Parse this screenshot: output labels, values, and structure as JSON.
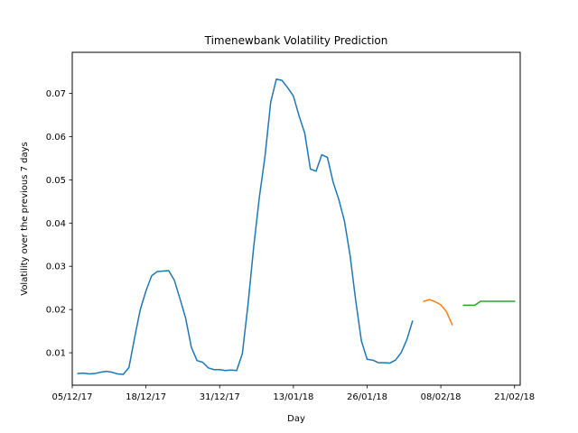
{
  "chart_data": {
    "type": "line",
    "title": "Timenewbank Volatility Prediction",
    "xlabel": "Day",
    "ylabel": "Volatility over the previous 7 days",
    "x_range": [
      "2017-12-05",
      "2018-02-22"
    ],
    "ylim": [
      0.0025,
      0.0795
    ],
    "x_ticks": [
      {
        "date": "2017-12-05",
        "label": "05/12/17"
      },
      {
        "date": "2017-12-18",
        "label": "18/12/17"
      },
      {
        "date": "2017-12-31",
        "label": "31/12/17"
      },
      {
        "date": "2018-01-13",
        "label": "13/01/18"
      },
      {
        "date": "2018-01-26",
        "label": "26/01/18"
      },
      {
        "date": "2018-02-08",
        "label": "08/02/18"
      },
      {
        "date": "2018-02-21",
        "label": "21/02/18"
      }
    ],
    "y_ticks": [
      {
        "value": 0.01,
        "label": "0.01"
      },
      {
        "value": 0.02,
        "label": "0.02"
      },
      {
        "value": 0.03,
        "label": "0.03"
      },
      {
        "value": 0.04,
        "label": "0.04"
      },
      {
        "value": 0.05,
        "label": "0.05"
      },
      {
        "value": 0.06,
        "label": "0.06"
      },
      {
        "value": 0.07,
        "label": "0.07"
      }
    ],
    "grid": false,
    "legend": "none",
    "series": [
      {
        "color": "#1f77b4",
        "points": [
          [
            "2017-12-06",
            0.0052
          ],
          [
            "2017-12-07",
            0.0053
          ],
          [
            "2017-12-08",
            0.0051
          ],
          [
            "2017-12-09",
            0.0052
          ],
          [
            "2017-12-10",
            0.0055
          ],
          [
            "2017-12-11",
            0.0057
          ],
          [
            "2017-12-12",
            0.0055
          ],
          [
            "2017-12-13",
            0.0051
          ],
          [
            "2017-12-14",
            0.005
          ],
          [
            "2017-12-15",
            0.0066
          ],
          [
            "2017-12-16",
            0.0135
          ],
          [
            "2017-12-17",
            0.02
          ],
          [
            "2017-12-18",
            0.0243
          ],
          [
            "2017-12-19",
            0.0278
          ],
          [
            "2017-12-20",
            0.0288
          ],
          [
            "2017-12-21",
            0.0289
          ],
          [
            "2017-12-22",
            0.029
          ],
          [
            "2017-12-23",
            0.0268
          ],
          [
            "2017-12-24",
            0.0225
          ],
          [
            "2017-12-25",
            0.018
          ],
          [
            "2017-12-26",
            0.0113
          ],
          [
            "2017-12-27",
            0.0082
          ],
          [
            "2017-12-28",
            0.0078
          ],
          [
            "2017-12-29",
            0.0065
          ],
          [
            "2017-12-30",
            0.0061
          ],
          [
            "2017-12-31",
            0.0061
          ],
          [
            "2018-01-01",
            0.0059
          ],
          [
            "2018-01-02",
            0.006
          ],
          [
            "2018-01-03",
            0.0059
          ],
          [
            "2018-01-04",
            0.0098
          ],
          [
            "2018-01-05",
            0.0212
          ],
          [
            "2018-01-06",
            0.0345
          ],
          [
            "2018-01-07",
            0.046
          ],
          [
            "2018-01-08",
            0.0555
          ],
          [
            "2018-01-09",
            0.068
          ],
          [
            "2018-01-10",
            0.0733
          ],
          [
            "2018-01-11",
            0.073
          ],
          [
            "2018-01-12",
            0.0713
          ],
          [
            "2018-01-13",
            0.0694
          ],
          [
            "2018-01-14",
            0.0648
          ],
          [
            "2018-01-15",
            0.0608
          ],
          [
            "2018-01-16",
            0.0525
          ],
          [
            "2018-01-17",
            0.052
          ],
          [
            "2018-01-18",
            0.0558
          ],
          [
            "2018-01-19",
            0.0552
          ],
          [
            "2018-01-20",
            0.0495
          ],
          [
            "2018-01-21",
            0.0455
          ],
          [
            "2018-01-22",
            0.0405
          ],
          [
            "2018-01-23",
            0.0325
          ],
          [
            "2018-01-24",
            0.022
          ],
          [
            "2018-01-25",
            0.0127
          ],
          [
            "2018-01-26",
            0.0085
          ],
          [
            "2018-01-27",
            0.0083
          ],
          [
            "2018-01-28",
            0.0077
          ],
          [
            "2018-01-29",
            0.0077
          ],
          [
            "2018-01-30",
            0.0076
          ],
          [
            "2018-01-31",
            0.0083
          ],
          [
            "2018-02-01",
            0.01
          ],
          [
            "2018-02-02",
            0.013
          ],
          [
            "2018-02-03",
            0.0173
          ]
        ]
      },
      {
        "color": "#ff7f0e",
        "points": [
          [
            "2018-02-05",
            0.0219
          ],
          [
            "2018-02-06",
            0.0223
          ],
          [
            "2018-02-07",
            0.0218
          ],
          [
            "2018-02-08",
            0.0211
          ],
          [
            "2018-02-09",
            0.0195
          ],
          [
            "2018-02-10",
            0.0165
          ]
        ]
      },
      {
        "color": "#2ca02c",
        "points": [
          [
            "2018-02-12",
            0.021
          ],
          [
            "2018-02-13",
            0.021
          ],
          [
            "2018-02-14",
            0.021
          ],
          [
            "2018-02-15",
            0.0219
          ],
          [
            "2018-02-16",
            0.0219
          ],
          [
            "2018-02-17",
            0.0219
          ],
          [
            "2018-02-18",
            0.0219
          ],
          [
            "2018-02-19",
            0.0219
          ],
          [
            "2018-02-20",
            0.0219
          ],
          [
            "2018-02-21",
            0.0219
          ]
        ]
      }
    ]
  }
}
